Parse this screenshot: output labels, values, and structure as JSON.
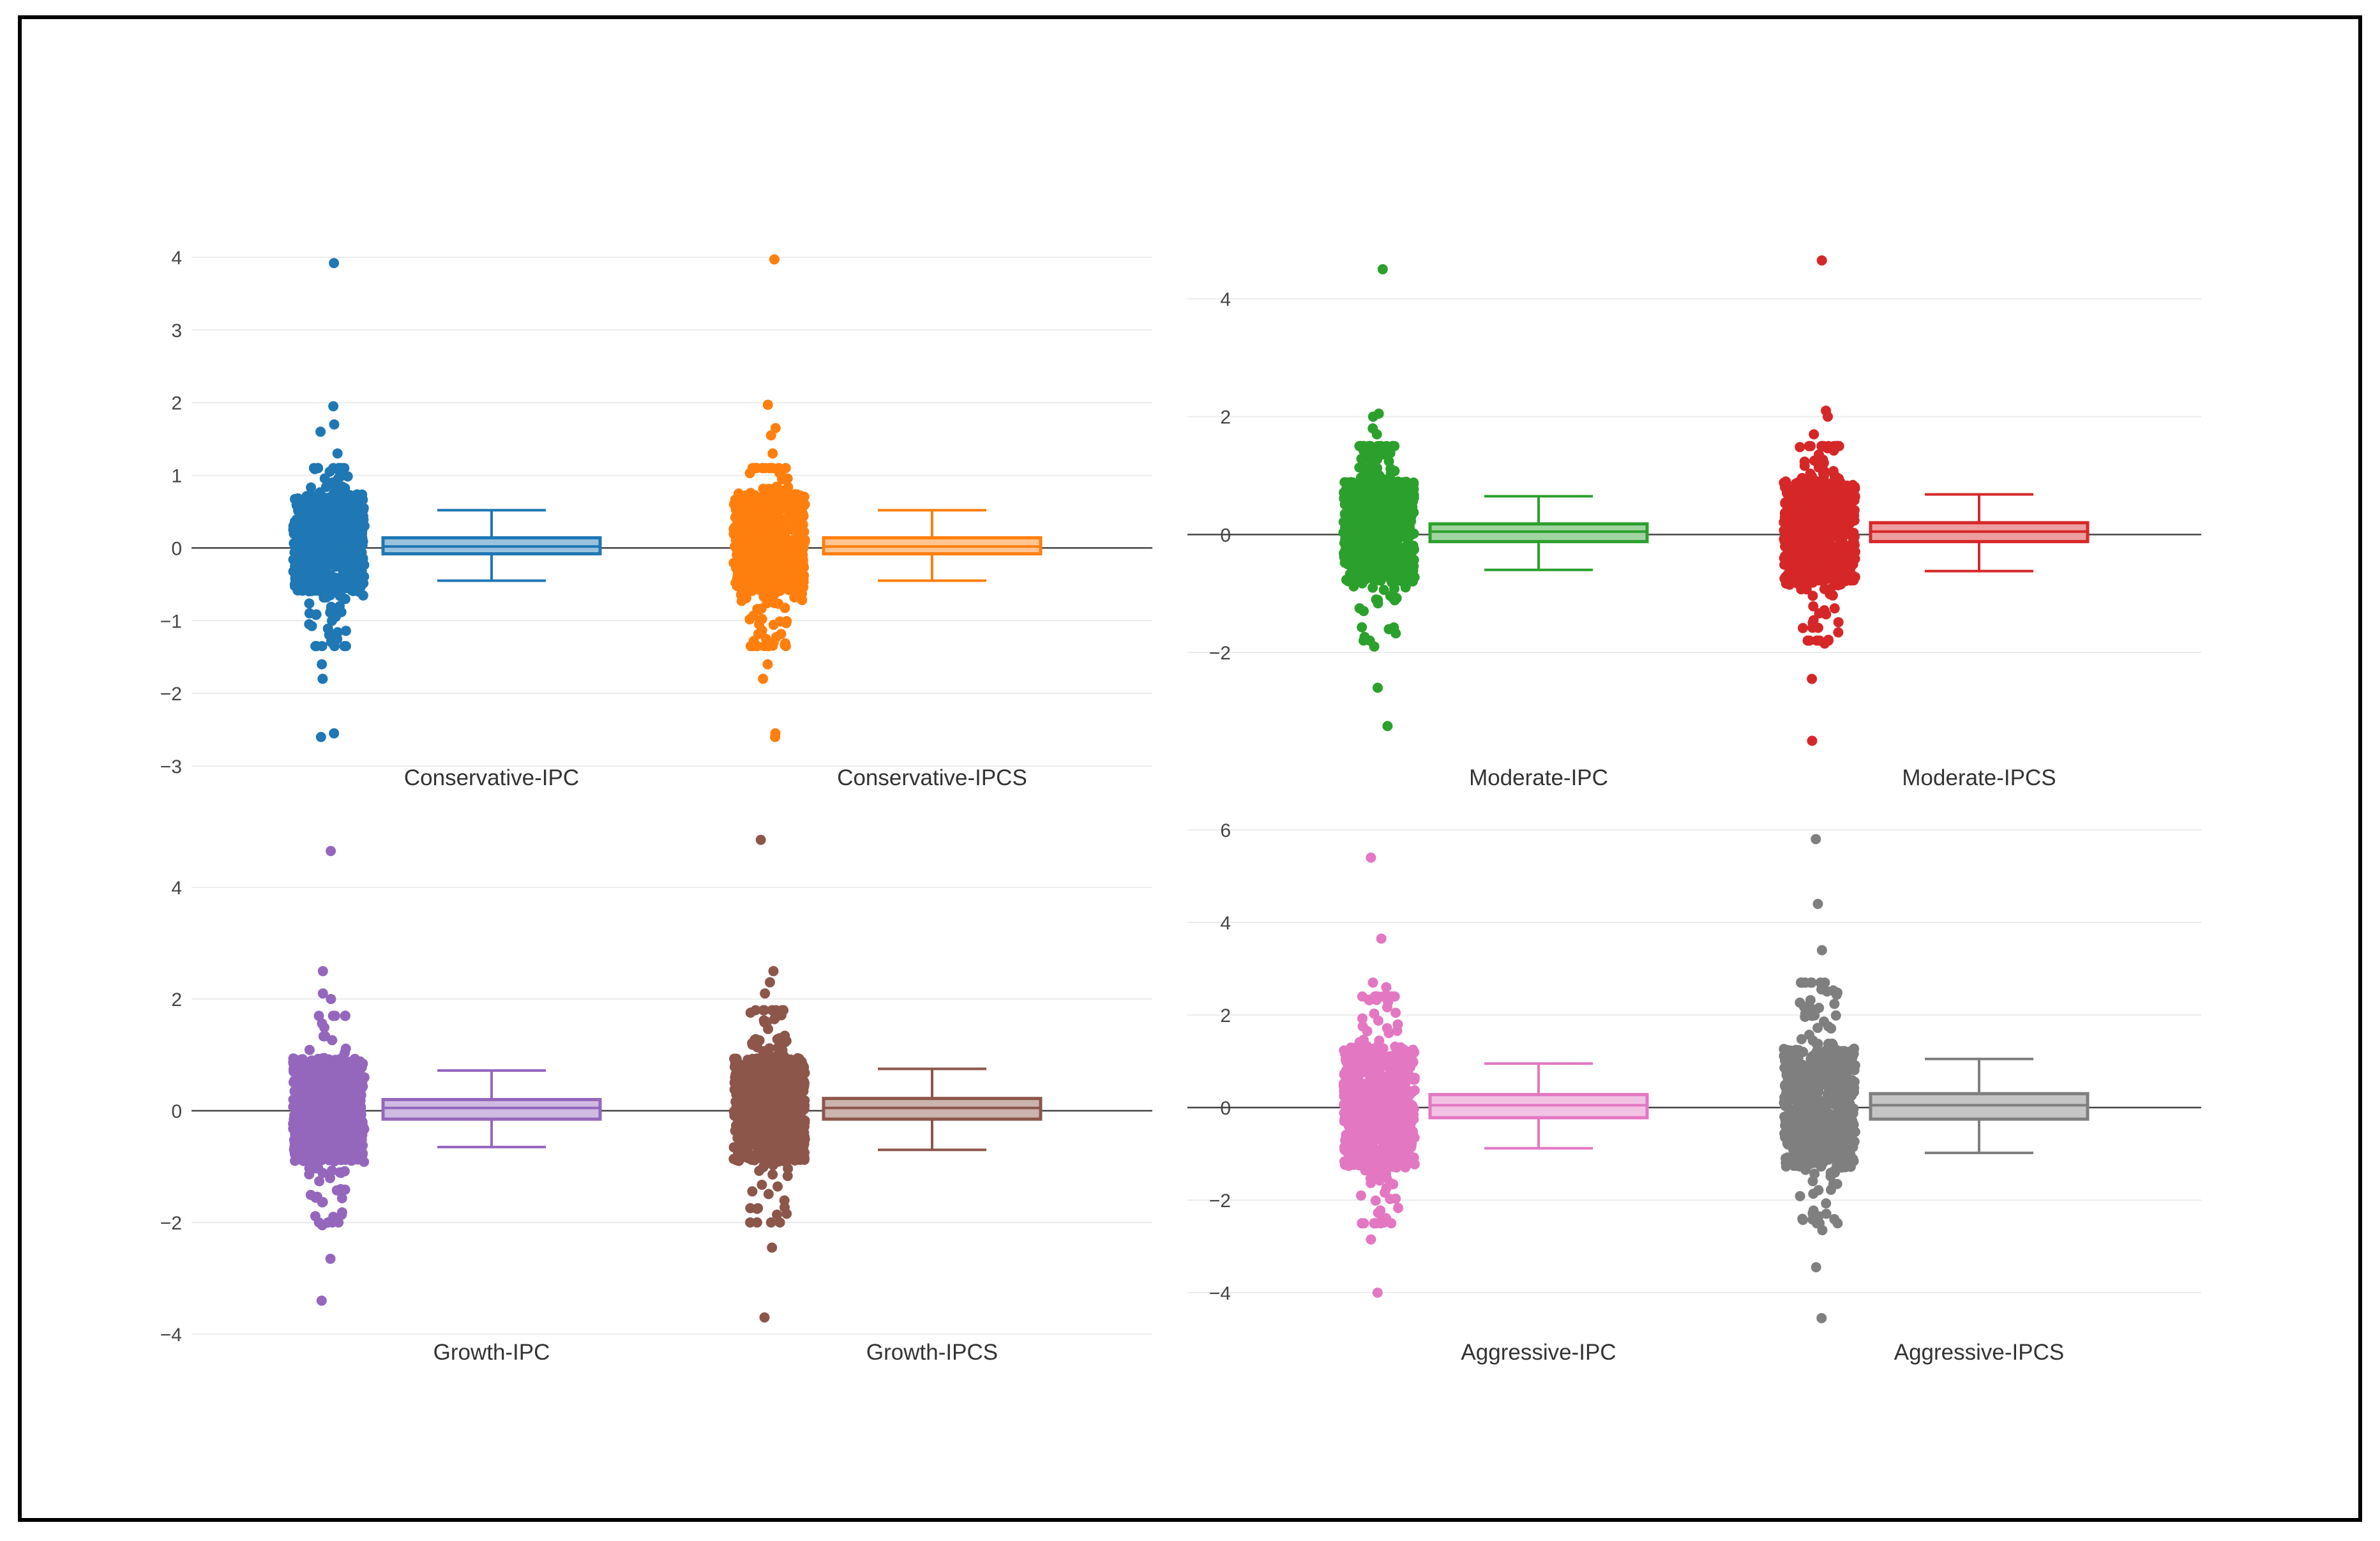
{
  "chart_data": [
    {
      "type": "box",
      "panel": "top-left",
      "yticks": [
        4,
        3,
        2,
        1,
        0,
        -1,
        -2,
        -3
      ],
      "ytick_labels": [
        "4",
        "3",
        "2",
        "1",
        "0",
        "−1",
        "−2",
        "−3"
      ],
      "ylim": [
        -3,
        4.1
      ],
      "traces": [
        {
          "name": "Conservative-IPC",
          "color": "#1f77b4",
          "box": {
            "q1": -0.08,
            "median": 0.02,
            "q3": 0.14,
            "lower_whisker": -0.45,
            "upper_whisker": 0.52
          },
          "core_range": [
            -0.6,
            0.75
          ],
          "tail_range": [
            -1.35,
            1.1
          ],
          "outliers": [
            3.92,
            1.95,
            1.7,
            1.6,
            1.3,
            -1.6,
            -1.8,
            -2.55,
            -2.6
          ]
        },
        {
          "name": "Conservative-IPCS",
          "color": "#ff7f0e",
          "box": {
            "q1": -0.08,
            "median": 0.02,
            "q3": 0.14,
            "lower_whisker": -0.45,
            "upper_whisker": 0.52
          },
          "core_range": [
            -0.6,
            0.75
          ],
          "tail_range": [
            -1.35,
            1.1
          ],
          "outliers": [
            3.97,
            1.97,
            1.65,
            1.55,
            1.3,
            -1.6,
            -1.8,
            -2.55,
            -2.6
          ]
        }
      ]
    },
    {
      "type": "box",
      "panel": "top-right",
      "yticks": [
        4,
        2,
        0,
        -2
      ],
      "ytick_labels": [
        "4",
        "2",
        "0",
        "−2"
      ],
      "ylim": [
        -3.5,
        4.6
      ],
      "traces": [
        {
          "name": "Moderate-IPC",
          "color": "#2ca02c",
          "box": {
            "q1": -0.12,
            "median": 0.05,
            "q3": 0.18,
            "lower_whisker": -0.6,
            "upper_whisker": 0.65
          },
          "core_range": [
            -0.8,
            0.9
          ],
          "tail_range": [
            -1.8,
            1.5
          ],
          "outliers": [
            4.5,
            2.05,
            2.0,
            1.8,
            1.7,
            -1.9,
            -2.6,
            -3.25
          ]
        },
        {
          "name": "Moderate-IPCS",
          "color": "#d62728",
          "box": {
            "q1": -0.12,
            "median": 0.05,
            "q3": 0.2,
            "lower_whisker": -0.62,
            "upper_whisker": 0.68
          },
          "core_range": [
            -0.8,
            0.9
          ],
          "tail_range": [
            -1.8,
            1.5
          ],
          "outliers": [
            4.65,
            2.1,
            2.0,
            1.7,
            -1.85,
            -2.45,
            -3.5
          ]
        }
      ]
    },
    {
      "type": "box",
      "panel": "bottom-left",
      "yticks": [
        4,
        2,
        0,
        -2,
        -4
      ],
      "ytick_labels": [
        "4",
        "2",
        "0",
        "−2",
        "−4"
      ],
      "ylim": [
        -4,
        4.8
      ],
      "traces": [
        {
          "name": "Growth-IPC",
          "color": "#9467bd",
          "box": {
            "q1": -0.15,
            "median": 0.05,
            "q3": 0.2,
            "lower_whisker": -0.65,
            "upper_whisker": 0.72
          },
          "core_range": [
            -0.9,
            0.95
          ],
          "tail_range": [
            -2.0,
            1.7
          ],
          "outliers": [
            4.65,
            2.5,
            2.1,
            2.0,
            1.7,
            -1.9,
            -2.05,
            -2.65,
            -3.4
          ]
        },
        {
          "name": "Growth-IPCS",
          "color": "#8c564b",
          "box": {
            "q1": -0.15,
            "median": 0.05,
            "q3": 0.22,
            "lower_whisker": -0.7,
            "upper_whisker": 0.75
          },
          "core_range": [
            -0.9,
            0.95
          ],
          "tail_range": [
            -2.0,
            1.8
          ],
          "outliers": [
            4.85,
            2.5,
            2.3,
            2.1,
            -2.0,
            -2.45,
            -3.7
          ]
        }
      ]
    },
    {
      "type": "box",
      "panel": "bottom-right",
      "yticks": [
        6,
        4,
        2,
        0,
        -2,
        -4
      ],
      "ytick_labels": [
        "6",
        "4",
        "2",
        "0",
        "−2",
        "−4"
      ],
      "ylim": [
        -4.6,
        6
      ],
      "traces": [
        {
          "name": "Aggressive-IPC",
          "color": "#e377c2",
          "box": {
            "q1": -0.22,
            "median": 0.05,
            "q3": 0.28,
            "lower_whisker": -0.88,
            "upper_whisker": 0.95
          },
          "core_range": [
            -1.3,
            1.3
          ],
          "tail_range": [
            -2.5,
            2.4
          ],
          "outliers": [
            5.4,
            3.65,
            2.7,
            2.6,
            -2.85,
            -4.0
          ]
        },
        {
          "name": "Aggressive-IPCS",
          "color": "#7f7f7f",
          "box": {
            "q1": -0.25,
            "median": 0.05,
            "q3": 0.3,
            "lower_whisker": -0.98,
            "upper_whisker": 1.05
          },
          "core_range": [
            -1.3,
            1.3
          ],
          "tail_range": [
            -2.5,
            2.7
          ],
          "outliers": [
            5.8,
            4.4,
            3.4,
            2.7,
            -2.65,
            -3.45,
            -4.55
          ]
        }
      ]
    }
  ]
}
